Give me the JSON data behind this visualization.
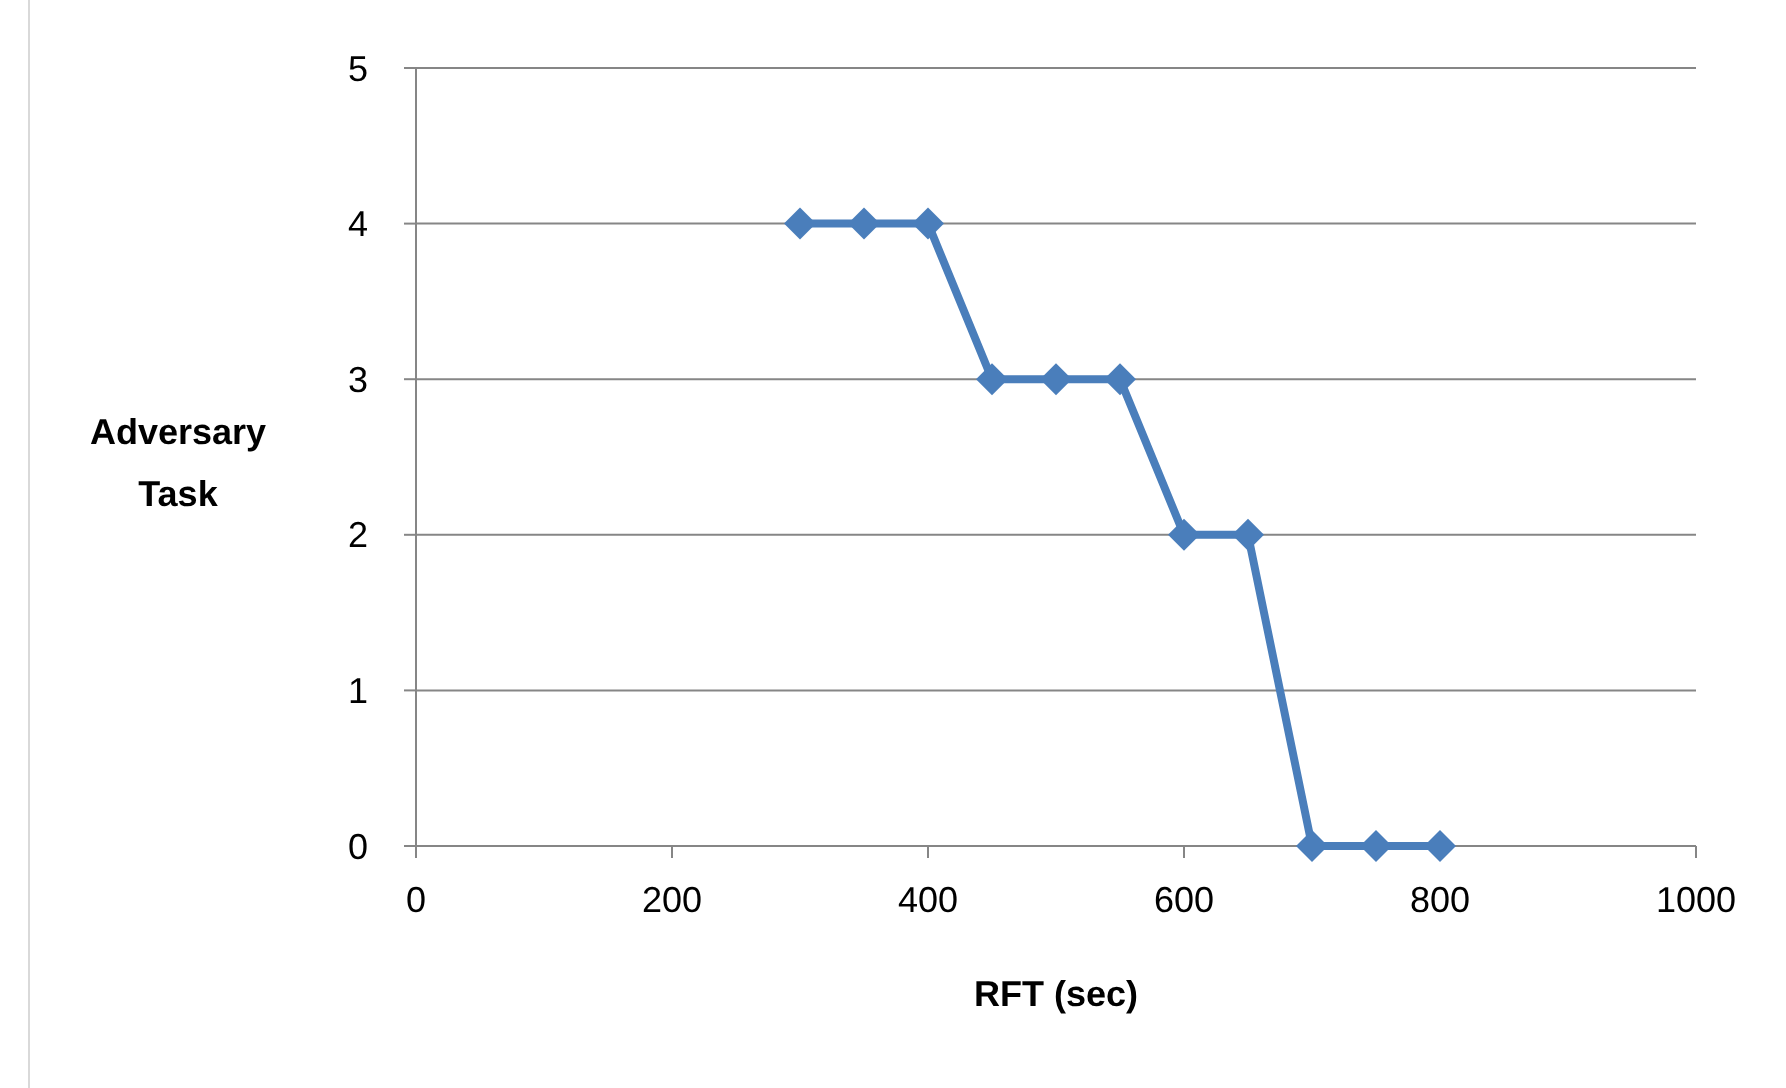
{
  "chart_data": {
    "type": "line",
    "xlabel": "RFT (sec)",
    "ylabel": "Adversary Task",
    "x": [
      300,
      350,
      400,
      450,
      500,
      550,
      600,
      650,
      700,
      750,
      800
    ],
    "series": [
      {
        "color": "#4a7ebb",
        "values": [
          4,
          4,
          4,
          3,
          3,
          3,
          2,
          2,
          0,
          0,
          0
        ]
      }
    ],
    "xlim": [
      0,
      1000
    ],
    "xticks": [
      0,
      200,
      400,
      600,
      800,
      1000
    ],
    "ylim": [
      0,
      5
    ],
    "yticks": [
      0,
      1,
      2,
      3,
      4,
      5
    ],
    "grid": "y",
    "marker": "diamond",
    "line_style": "solid"
  }
}
